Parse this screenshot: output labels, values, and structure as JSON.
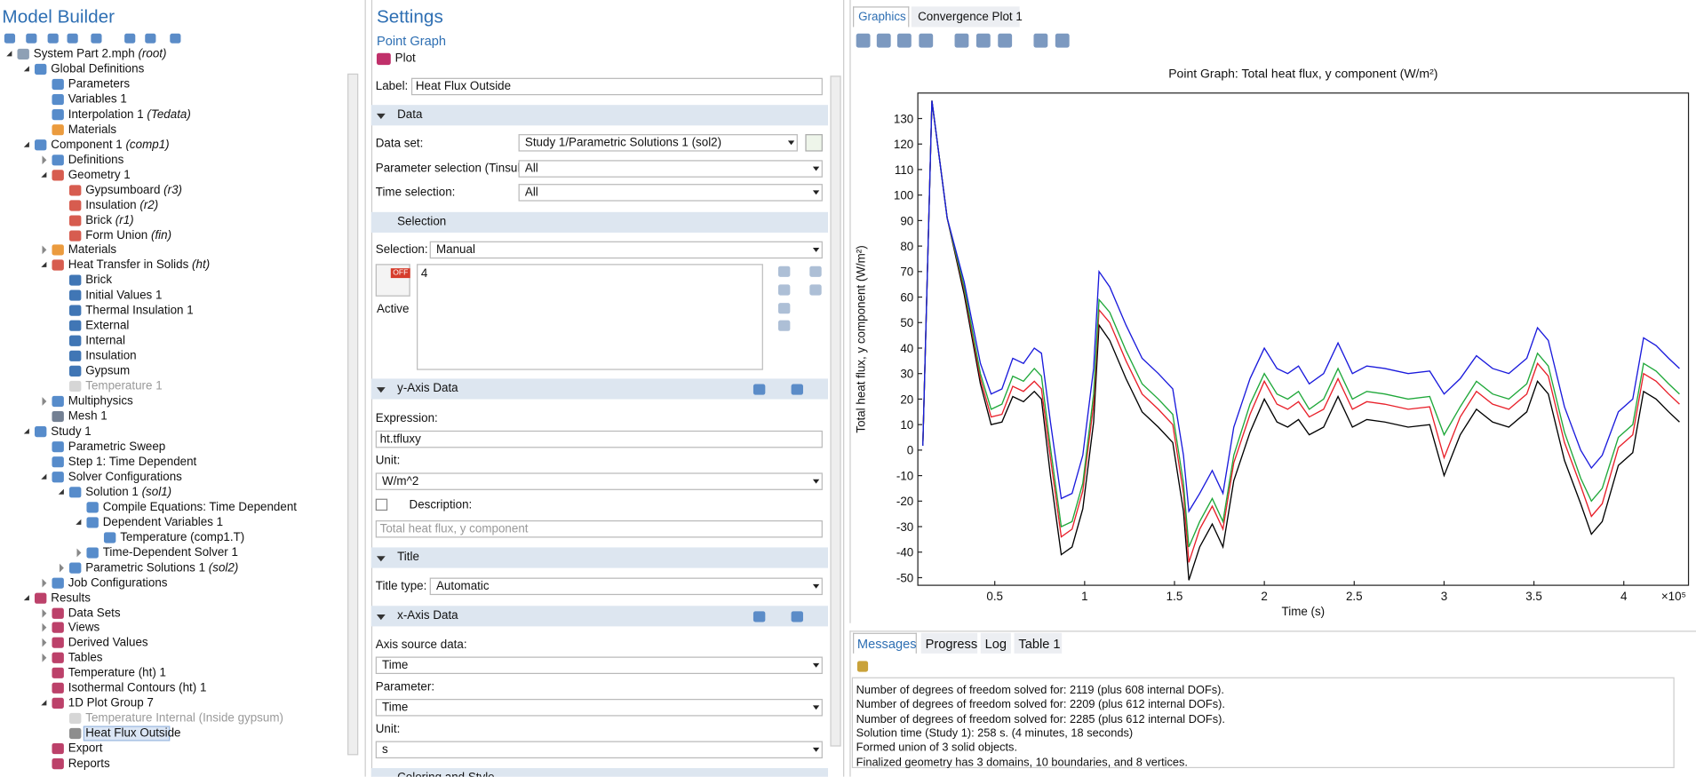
{
  "model_builder": {
    "title": "Model Builder",
    "tree": [
      {
        "label": "System Part 2.mph",
        "tag": "(root)"
      },
      {
        "label": "Global Definitions"
      },
      {
        "label": "Parameters"
      },
      {
        "label": "Variables 1"
      },
      {
        "label": "Interpolation 1",
        "tag": "(Tedata)"
      },
      {
        "label": "Materials"
      },
      {
        "label": "Component 1",
        "tag": "(comp1)"
      },
      {
        "label": "Definitions"
      },
      {
        "label": "Geometry 1"
      },
      {
        "label": "Gypsumboard",
        "tag": "(r3)"
      },
      {
        "label": "Insulation",
        "tag": "(r2)"
      },
      {
        "label": "Brick",
        "tag": "(r1)"
      },
      {
        "label": "Form Union",
        "tag": "(fin)"
      },
      {
        "label": "Materials"
      },
      {
        "label": "Heat Transfer in Solids",
        "tag": "(ht)"
      },
      {
        "label": "Brick"
      },
      {
        "label": "Initial Values 1"
      },
      {
        "label": "Thermal Insulation 1"
      },
      {
        "label": "External"
      },
      {
        "label": "Internal"
      },
      {
        "label": "Insulation"
      },
      {
        "label": "Gypsum"
      },
      {
        "label": "Temperature 1"
      },
      {
        "label": "Multiphysics"
      },
      {
        "label": "Mesh 1"
      },
      {
        "label": "Study 1"
      },
      {
        "label": "Parametric Sweep"
      },
      {
        "label": "Step 1: Time Dependent"
      },
      {
        "label": "Solver Configurations"
      },
      {
        "label": "Solution 1",
        "tag": "(sol1)"
      },
      {
        "label": "Compile Equations: Time Dependent"
      },
      {
        "label": "Dependent Variables 1"
      },
      {
        "label": "Temperature (comp1.T)"
      },
      {
        "label": "Time-Dependent Solver 1"
      },
      {
        "label": "Parametric Solutions 1",
        "tag": "(sol2)"
      },
      {
        "label": "Job Configurations"
      },
      {
        "label": "Results"
      },
      {
        "label": "Data Sets"
      },
      {
        "label": "Views"
      },
      {
        "label": "Derived Values"
      },
      {
        "label": "Tables"
      },
      {
        "label": "Temperature (ht) 1"
      },
      {
        "label": "Isothermal Contours (ht) 1"
      },
      {
        "label": "1D Plot Group 7"
      },
      {
        "label": "Temperature Internal (Inside gypsum)"
      },
      {
        "label": "Heat Flux Outside"
      },
      {
        "label": "Export"
      },
      {
        "label": "Reports"
      }
    ]
  },
  "settings": {
    "title": "Settings",
    "subtitle": "Point Graph",
    "plot_button": "Plot",
    "label_field": {
      "label": "Label:",
      "value": "Heat Flux Outside"
    },
    "data": {
      "header": "Data",
      "data_set": {
        "label": "Data set:",
        "value": "Study 1/Parametric Solutions 1 (sol2)"
      },
      "parameter_selection": {
        "label": "Parameter selection (Tinsul):",
        "value": "All"
      },
      "time_selection": {
        "label": "Time selection:",
        "value": "All"
      }
    },
    "selection": {
      "header": "Selection",
      "selection": {
        "label": "Selection:",
        "value": "Manual"
      },
      "toggle": "OFF",
      "active": "Active",
      "items": [
        "4"
      ]
    },
    "y_axis": {
      "header": "y-Axis Data",
      "expression": {
        "label": "Expression:",
        "value": "ht.tfluxy"
      },
      "unit": {
        "label": "Unit:",
        "value": "W/m^2"
      },
      "description": {
        "label": "Description:",
        "value": "Total heat flux, y component"
      }
    },
    "title_section": {
      "header": "Title",
      "title_type": {
        "label": "Title type:",
        "value": "Automatic"
      }
    },
    "x_axis": {
      "header": "x-Axis Data",
      "source": {
        "label": "Axis source data:",
        "value": "Time"
      },
      "parameter": {
        "label": "Parameter:",
        "value": "Time"
      },
      "unit": {
        "label": "Unit:",
        "value": "s"
      }
    },
    "coloring": {
      "header": "Coloring and Style"
    }
  },
  "graphics": {
    "tabs": [
      "Graphics",
      "Convergence Plot 1"
    ],
    "plot": {
      "type": "line",
      "title": "Point Graph: Total heat flux, y component (W/m²)",
      "x_label": "Time (s)",
      "y_label": "Total heat flux, y component (W/m²)",
      "x_multiplier": "×10⁵",
      "grid": false,
      "xlim": [
        0.072,
        4.36
      ],
      "xticks": [
        0.5,
        1,
        1.5,
        2,
        2.5,
        3,
        3.5,
        4
      ],
      "ylim": [
        -53,
        140
      ],
      "yticks": [
        -50,
        -40,
        -30,
        -20,
        -10,
        0,
        10,
        20,
        30,
        40,
        50,
        60,
        70,
        80,
        90,
        100,
        110,
        120,
        130
      ],
      "x": [
        0.1,
        0.15,
        0.235,
        0.33,
        0.42,
        0.48,
        0.54,
        0.6,
        0.66,
        0.72,
        0.76,
        0.81,
        0.87,
        0.93,
        0.99,
        1.05,
        1.08,
        1.14,
        1.23,
        1.32,
        1.41,
        1.49,
        1.55,
        1.58,
        1.64,
        1.71,
        1.77,
        1.83,
        1.92,
        2.0,
        2.07,
        2.13,
        2.19,
        2.25,
        2.33,
        2.41,
        2.49,
        2.57,
        2.67,
        2.8,
        2.92,
        3.0,
        3.09,
        3.18,
        3.27,
        3.36,
        3.46,
        3.52,
        3.58,
        3.67,
        3.76,
        3.82,
        3.88,
        3.97,
        4.05,
        4.11,
        4.18,
        4.25,
        4.31
      ],
      "series": [
        {
          "color": "#000000",
          "values": [
            1.7,
            137,
            91,
            61,
            26,
            10,
            11,
            21,
            19,
            23,
            20,
            -10,
            -41,
            -38,
            -23,
            11,
            49,
            43,
            28,
            15,
            9,
            3,
            -24,
            -51,
            -38,
            -29,
            -38,
            -12,
            7,
            20,
            11,
            9,
            12,
            6,
            9,
            21,
            9,
            12,
            11,
            9,
            10,
            -10,
            6,
            16,
            11,
            9,
            15,
            27,
            22,
            -4,
            -21,
            -33,
            -28,
            -6,
            -1,
            23,
            20,
            15,
            11
          ]
        },
        {
          "color": "#e8202a",
          "values": [
            1.7,
            137,
            91,
            63,
            28,
            13,
            14,
            25,
            23,
            27,
            24,
            -3,
            -34,
            -31,
            -16,
            18,
            55,
            50,
            35,
            22,
            16,
            10,
            -17,
            -44,
            -31,
            -22,
            -31,
            -5,
            14,
            27,
            18,
            16,
            19,
            13,
            16,
            28,
            16,
            19,
            18,
            16,
            17,
            -3,
            13,
            23,
            18,
            16,
            22,
            34,
            29,
            3,
            -14,
            -26,
            -21,
            1,
            6,
            30,
            27,
            22,
            18
          ]
        },
        {
          "color": "#1fa83a",
          "values": [
            1.7,
            137,
            91,
            64,
            30,
            16,
            18,
            29,
            27,
            32,
            29,
            1,
            -30,
            -28,
            -13,
            22,
            59,
            54,
            39,
            26,
            20,
            14,
            -13,
            -38,
            -28,
            -19,
            -28,
            -2,
            18,
            30,
            22,
            20,
            23,
            16,
            20,
            32,
            20,
            23,
            22,
            20,
            21,
            6,
            17,
            27,
            22,
            20,
            26,
            38,
            33,
            7,
            -11,
            -20,
            -15,
            5,
            10,
            34,
            31,
            26,
            22
          ]
        },
        {
          "color": "#1a1adc",
          "values": [
            1.7,
            137,
            91,
            66,
            34,
            22,
            24,
            36,
            34,
            40,
            38,
            11,
            -19,
            -17,
            -2,
            32,
            70,
            64,
            49,
            36,
            30,
            24,
            -2,
            -24,
            -17,
            -8,
            -17,
            9,
            28,
            40,
            32,
            30,
            33,
            26,
            30,
            42,
            30,
            33,
            32,
            30,
            31,
            22,
            28,
            37,
            32,
            30,
            36,
            48,
            43,
            17,
            0,
            -7,
            -2,
            15,
            20,
            44,
            41,
            36,
            32
          ]
        }
      ]
    }
  },
  "messages": {
    "tabs": [
      "Messages",
      "Progress",
      "Log",
      "Table 1"
    ],
    "lines": [
      "Number of degrees of freedom solved for: 2119 (plus 608 internal DOFs).",
      "Number of degrees of freedom solved for: 2209 (plus 612 internal DOFs).",
      "Number of degrees of freedom solved for: 2285 (plus 612 internal DOFs).",
      "Solution time (Study 1): 258 s. (4 minutes, 18 seconds)",
      "Formed union of 3 solid objects.",
      "Finalized geometry has 3 domains, 10 boundaries, and 8 vertices."
    ]
  }
}
